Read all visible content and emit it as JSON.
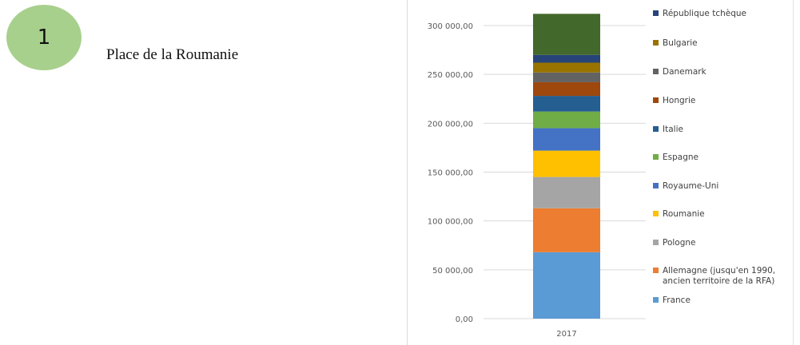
{
  "badge": {
    "number": "1"
  },
  "heading": "Place de la Roumanie",
  "colors": {
    "badge_fill": "#a8d08d",
    "gridline": "#d9d9d9"
  },
  "chart_data": {
    "type": "bar",
    "stacked": true,
    "categories": [
      "2017"
    ],
    "ylim": [
      0,
      310000
    ],
    "yticks": [
      0,
      50000,
      100000,
      150000,
      200000,
      250000,
      300000
    ],
    "ytick_labels": [
      "0,00",
      "50 000,00",
      "100 000,00",
      "150 000,00",
      "200 000,00",
      "250 000,00",
      "300 000,00"
    ],
    "grid": true,
    "legend_position": "right",
    "series": [
      {
        "name": "France",
        "values": [
          68000
        ],
        "color": "#5b9bd5"
      },
      {
        "name": "Allemagne (jusqu'en 1990, ancien territoire de la RFA)",
        "values": [
          45000
        ],
        "color": "#ed7d31"
      },
      {
        "name": "Pologne",
        "values": [
          32000
        ],
        "color": "#a5a5a5"
      },
      {
        "name": "Roumanie",
        "values": [
          27000
        ],
        "color": "#ffc000"
      },
      {
        "name": "Royaume-Uni",
        "values": [
          23000
        ],
        "color": "#4472c4"
      },
      {
        "name": "Espagne",
        "values": [
          17000
        ],
        "color": "#70ad47"
      },
      {
        "name": "Italie",
        "values": [
          16000
        ],
        "color": "#255e91"
      },
      {
        "name": "Hongrie",
        "values": [
          14000
        ],
        "color": "#9e480e"
      },
      {
        "name": "Danemark",
        "values": [
          10000
        ],
        "color": "#636363"
      },
      {
        "name": "Bulgarie",
        "values": [
          10000
        ],
        "color": "#997300"
      },
      {
        "name": "République tchèque",
        "values": [
          8000
        ],
        "color": "#264478"
      },
      {
        "name": "",
        "values": [
          42000
        ],
        "color": "#43682b"
      }
    ],
    "legend_order": [
      "République tchèque",
      "Bulgarie",
      "Danemark",
      "Hongrie",
      "Italie",
      "Espagne",
      "Royaume-Uni",
      "Roumanie",
      "Pologne",
      "Allemagne (jusqu'en 1990, ancien territoire de la RFA)",
      "France"
    ]
  }
}
